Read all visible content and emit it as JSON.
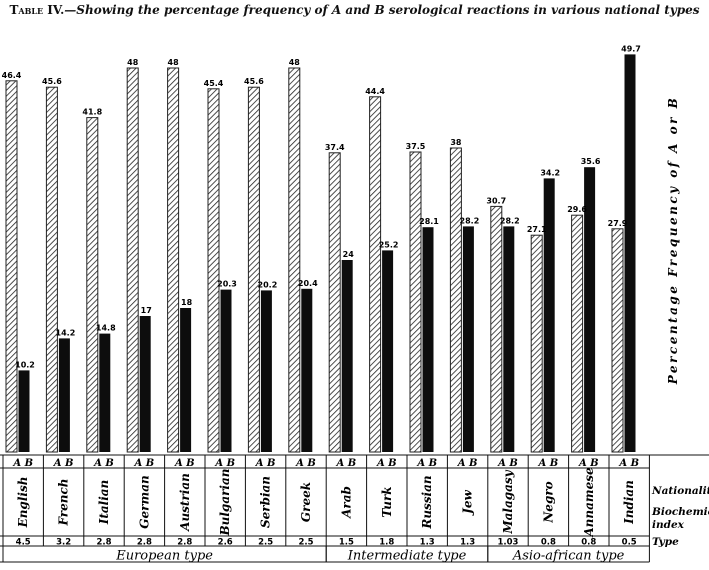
{
  "title": {
    "lead": "Table IV.",
    "text": "—Showing the percentage frequency of A and B serological reactions in various national types"
  },
  "chart_data": {
    "type": "bar",
    "ylabel": "Percentage Frequency of A or B",
    "series": [
      {
        "name": "A"
      },
      {
        "name": "B"
      }
    ],
    "ab_header": "A B",
    "row_labels": {
      "nationality": "Nationality",
      "index": "Biochemical index",
      "type": "Type"
    },
    "ylim": [
      0,
      50
    ],
    "categories": [
      "English",
      "French",
      "Italian",
      "German",
      "Austrian",
      "Bulgarian",
      "Serbian",
      "Greek",
      "Arab",
      "Turk",
      "Russian",
      "Jew",
      "Malagasy",
      "Negro",
      "Annamese",
      "Indian"
    ],
    "a_values": [
      46.4,
      45.6,
      41.8,
      48,
      48,
      45.4,
      45.6,
      48,
      37.4,
      44.4,
      37.5,
      38,
      30.7,
      27.1,
      29.6,
      27.9
    ],
    "b_values": [
      10.2,
      14.2,
      14.8,
      17,
      18,
      20.3,
      20.2,
      20.4,
      24,
      25.2,
      28.1,
      28.2,
      28.2,
      34.2,
      35.6,
      49.7
    ],
    "a_labels": [
      "46.4",
      "45.6",
      "41.8",
      "48",
      "48",
      "45.4",
      "45.6",
      "48",
      "37.4",
      "44.4",
      "37.5",
      "38",
      "30.7",
      "27.1",
      "29.6",
      "27.9"
    ],
    "b_labels": [
      "10.2",
      "14.2",
      "14.8",
      "17",
      "18",
      "20.3",
      "20.2",
      "20.4",
      "24",
      "25.2",
      "28.1",
      "28.2",
      "28.2",
      "34.2",
      "35.6",
      "49.7"
    ],
    "biochemical_index": [
      "4.5",
      "3.2",
      "2.8",
      "2.8",
      "2.8",
      "2.6",
      "2.5",
      "2.5",
      "1.5",
      "1.8",
      "1.3",
      "1.3",
      "1.03",
      "0.8",
      "0.8",
      "0.5"
    ],
    "groups": [
      {
        "name": "European type",
        "start": 0,
        "end": 7
      },
      {
        "name": "Intermediate type",
        "start": 8,
        "end": 11
      },
      {
        "name": "Asio-african type",
        "start": 12,
        "end": 15
      }
    ]
  }
}
